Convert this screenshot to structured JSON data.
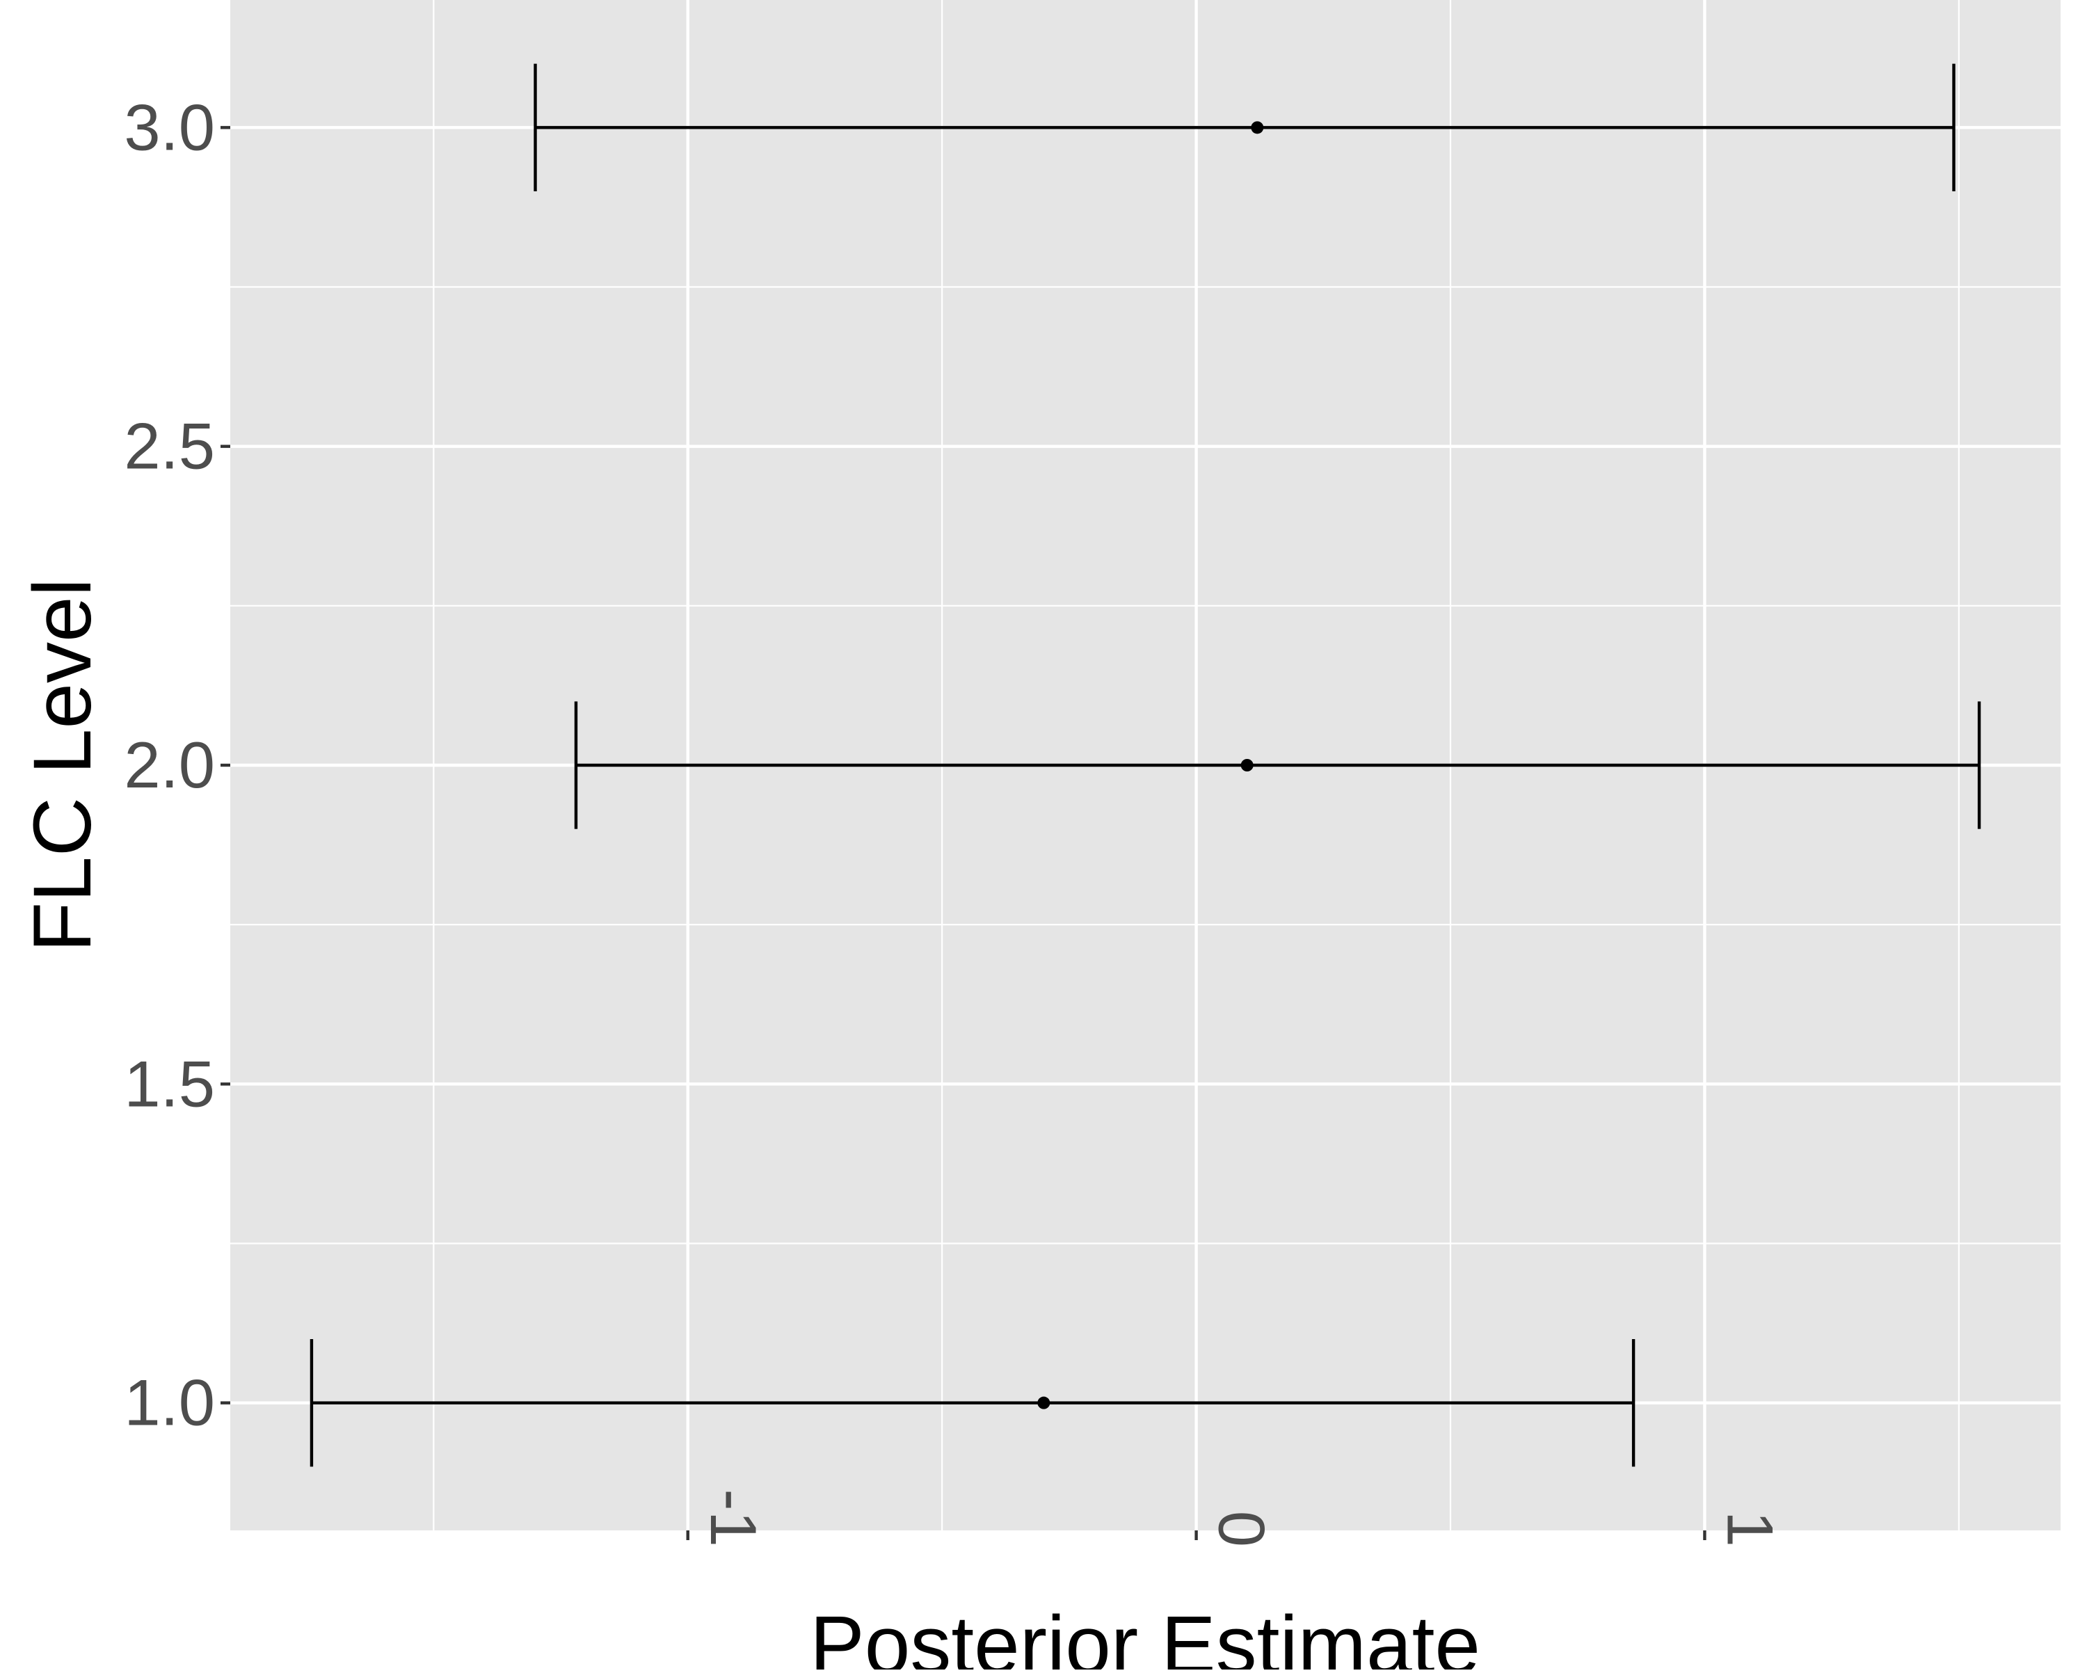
{
  "chart_data": {
    "type": "errorbar",
    "orientation": "horizontal",
    "xlabel": "Posterior Estimate",
    "ylabel": "FLC Level",
    "xlim": [
      -1.9,
      1.7
    ],
    "ylim": [
      0.8,
      3.2
    ],
    "xticks": [
      -1,
      0,
      1
    ],
    "xtick_labels": [
      "-1",
      "0",
      "1"
    ],
    "yticks": [
      1.0,
      1.5,
      2.0,
      2.5,
      3.0
    ],
    "ytick_labels": [
      "1.0",
      "1.5",
      "2.0",
      "2.5",
      "3.0"
    ],
    "grid": true,
    "points": [
      {
        "y": 1.0,
        "estimate": -0.3,
        "lower": -1.74,
        "upper": 0.86
      },
      {
        "y": 2.0,
        "estimate": 0.1,
        "lower": -1.22,
        "upper": 1.54
      },
      {
        "y": 3.0,
        "estimate": 0.12,
        "lower": -1.3,
        "upper": 1.49
      }
    ],
    "colors": {
      "panel_background": "#e5e5e5",
      "grid_line": "#ffffff",
      "marks": "#000000",
      "tick_label": "#4d4d4d",
      "axis_title": "#000000"
    }
  }
}
